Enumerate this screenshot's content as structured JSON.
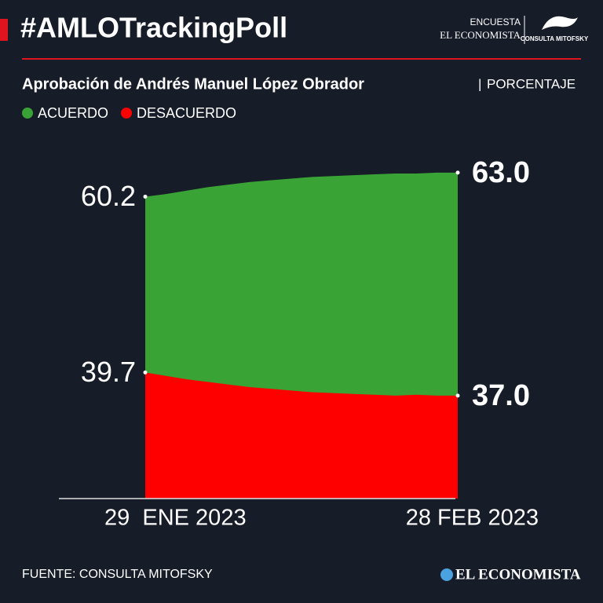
{
  "chart_data": {
    "type": "area",
    "title": "#AMLOTrackingPoll",
    "brand": {
      "line1": "ENCUESTA",
      "line2": "EL ECONOMISTA",
      "badge": "CONSULTA MITOFSKY"
    },
    "subtitle": "Aprobación de Andrés Manuel López Obrador",
    "unit": "PORCENTAJE",
    "categories": [
      "29  ENE 2023",
      null,
      null,
      null,
      null,
      null,
      null,
      null,
      null,
      null,
      null,
      null,
      null,
      null,
      null,
      "28 FEB 2023"
    ],
    "series": [
      {
        "name": "ACUERDO",
        "color": "#3aa335",
        "values": [
          60.2,
          60.5,
          60.9,
          61.3,
          61.6,
          61.9,
          62.1,
          62.3,
          62.5,
          62.6,
          62.7,
          62.8,
          62.9,
          62.9,
          63.0,
          63.0
        ],
        "value_labels": [
          "60.2",
          null,
          null,
          null,
          null,
          null,
          null,
          null,
          null,
          null,
          null,
          null,
          null,
          null,
          null,
          "63.0"
        ]
      },
      {
        "name": "DESACUERDO",
        "color": "#ff0000",
        "values": [
          39.7,
          39.3,
          38.9,
          38.6,
          38.3,
          38.0,
          37.8,
          37.6,
          37.4,
          37.3,
          37.2,
          37.1,
          37.0,
          37.1,
          37.0,
          37.0
        ],
        "value_labels": [
          "39.7",
          null,
          null,
          null,
          null,
          null,
          null,
          null,
          null,
          null,
          null,
          null,
          null,
          null,
          null,
          "37.0"
        ]
      }
    ],
    "ylim": [
      25,
      65
    ],
    "source": "FUENTE: CONSULTA MITOFSKY",
    "footer_brand": "EL ECONOMISTA"
  }
}
